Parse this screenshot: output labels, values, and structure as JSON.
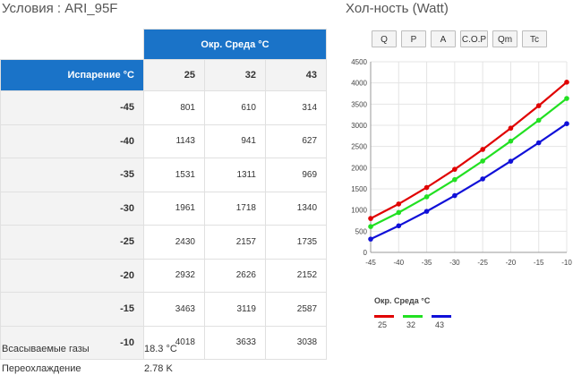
{
  "left_title": "Условия : ARI_95F",
  "right_title": "Хол-ность (Watt)",
  "table": {
    "env_header": "Окр. Среда °C",
    "evap_header": "Испарение °C",
    "columns": [
      "25",
      "32",
      "43"
    ],
    "rows": [
      {
        "evap": "-45",
        "values": [
          "801",
          "610",
          "314"
        ]
      },
      {
        "evap": "-40",
        "values": [
          "1143",
          "941",
          "627"
        ]
      },
      {
        "evap": "-35",
        "values": [
          "1531",
          "1311",
          "969"
        ]
      },
      {
        "evap": "-30",
        "values": [
          "1961",
          "1718",
          "1340"
        ]
      },
      {
        "evap": "-25",
        "values": [
          "2430",
          "2157",
          "1735"
        ]
      },
      {
        "evap": "-20",
        "values": [
          "2932",
          "2626",
          "2152"
        ]
      },
      {
        "evap": "-15",
        "values": [
          "3463",
          "3119",
          "2587"
        ]
      },
      {
        "evap": "-10",
        "values": [
          "4018",
          "3633",
          "3038"
        ]
      }
    ]
  },
  "info": {
    "suction_label": "Всасываемые газы",
    "suction_value": "18.3 °C",
    "subcool_label": "Переохлаждение",
    "subcool_value": "2.78 K"
  },
  "buttons": [
    "Q",
    "P",
    "A",
    "C.O.P",
    "Qm",
    "Tc"
  ],
  "colors": {
    "accent": "#1a73c8",
    "series": [
      "#e00000",
      "#22e022",
      "#1010d8"
    ]
  },
  "chart_data": {
    "type": "line",
    "title": "",
    "x": [
      -45,
      -40,
      -35,
      -30,
      -25,
      -20,
      -15,
      -10
    ],
    "x_ticks": [
      "-45",
      "-40",
      "-35",
      "-30",
      "-25",
      "-20",
      "-15",
      "-10"
    ],
    "y_ticks": [
      "0",
      "500",
      "1000",
      "1500",
      "2000",
      "2500",
      "3000",
      "3500",
      "4000",
      "4500"
    ],
    "ylim": [
      0,
      4500
    ],
    "grid": true,
    "legend_title": "Окр. Среда °C",
    "legend_position": "bottom-left",
    "series": [
      {
        "name": "25",
        "values": [
          801,
          1143,
          1531,
          1961,
          2430,
          2932,
          3463,
          4018
        ]
      },
      {
        "name": "32",
        "values": [
          610,
          941,
          1311,
          1718,
          2157,
          2626,
          3119,
          3633
        ]
      },
      {
        "name": "43",
        "values": [
          314,
          627,
          969,
          1340,
          1735,
          2152,
          2587,
          3038
        ]
      }
    ]
  }
}
